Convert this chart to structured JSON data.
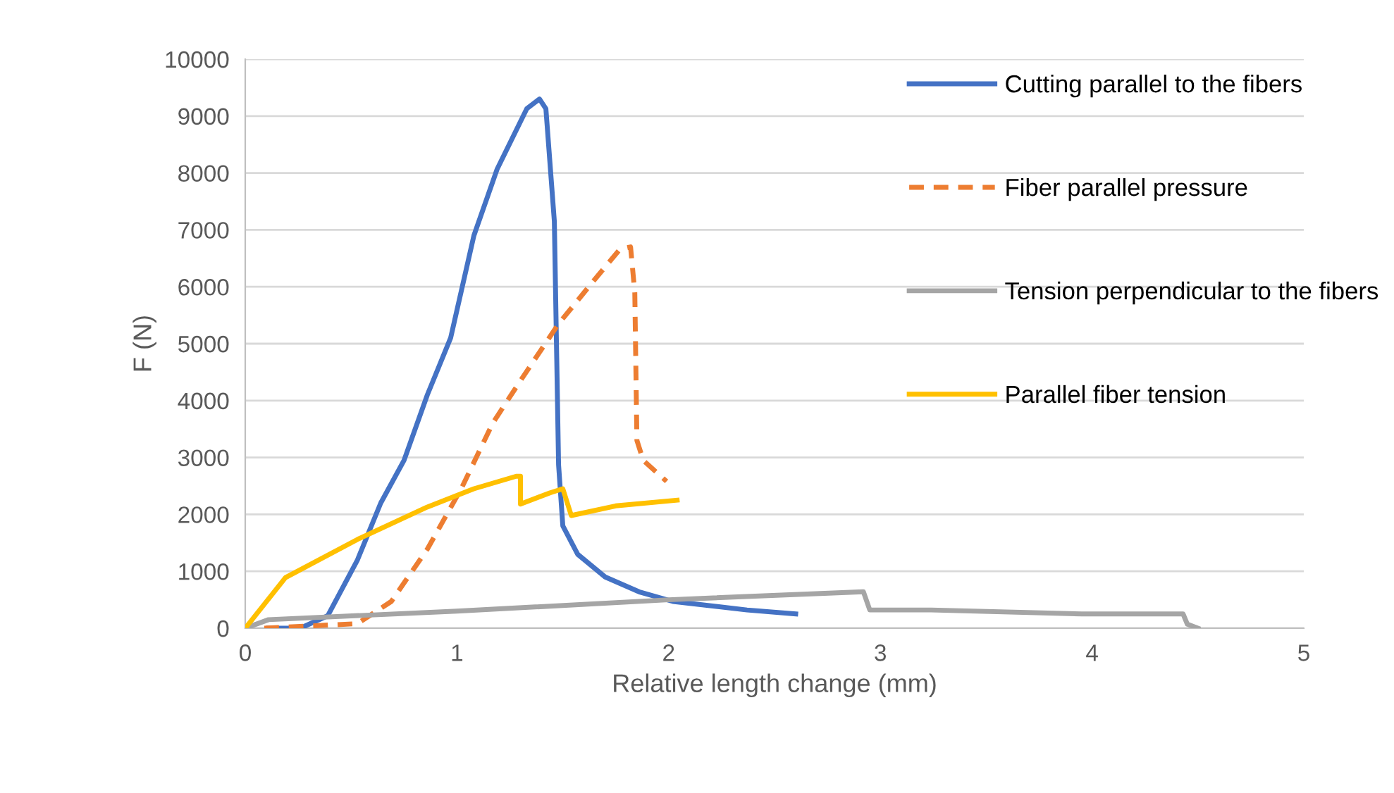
{
  "chart_data": {
    "type": "line",
    "xlabel": "Relative length change (mm)",
    "ylabel": "F (N)",
    "xlim": [
      0,
      5
    ],
    "xticks": [
      0,
      1,
      2,
      3,
      4,
      5
    ],
    "ylim": [
      0,
      10000
    ],
    "yticks": [
      0,
      1000,
      2000,
      3000,
      4000,
      5000,
      6000,
      7000,
      8000,
      9000,
      10000
    ],
    "grid": "y",
    "legend": "right",
    "marker": "none",
    "series": [
      {
        "name": "Cutting parallel to the fibers",
        "color": "#4472c4",
        "line_style": "solid",
        "x": [
          0.11,
          0.26,
          0.39,
          0.53,
          0.64,
          0.75,
          0.86,
          0.97,
          1.08,
          1.19,
          1.33,
          1.39,
          1.42,
          1.46,
          1.48,
          1.5,
          1.57,
          1.7,
          1.86,
          2.02,
          2.37,
          2.6
        ],
        "values": [
          0,
          0,
          220,
          1200,
          2200,
          2950,
          4100,
          5100,
          6900,
          8070,
          9130,
          9300,
          9130,
          7150,
          2870,
          1800,
          1300,
          900,
          640,
          470,
          320,
          250
        ]
      },
      {
        "name": "Fiber parallel pressure",
        "color": "#ed7d31",
        "line_style": "dashed",
        "x": [
          0.09,
          0.53,
          0.69,
          0.86,
          1.02,
          1.17,
          1.3,
          1.48,
          1.66,
          1.77,
          1.82,
          1.84,
          1.85,
          1.88,
          1.99
        ],
        "values": [
          0,
          80,
          470,
          1390,
          2450,
          3610,
          4350,
          5350,
          6170,
          6660,
          6700,
          5900,
          3300,
          2950,
          2580
        ]
      },
      {
        "name": "Tension perpendicular to the fibers",
        "color": "#a5a5a5",
        "line_style": "solid",
        "x": [
          0,
          0.11,
          1.0,
          2.0,
          2.92,
          2.95,
          3.24,
          3.95,
          4.43,
          4.45,
          4.5
        ],
        "values": [
          0,
          150,
          300,
          500,
          640,
          320,
          320,
          250,
          250,
          70,
          0
        ]
      },
      {
        "name": "Parallel fiber tension",
        "color": "#ffc000",
        "line_style": "solid",
        "x": [
          0,
          0.19,
          0.53,
          0.86,
          1.08,
          1.28,
          1.3,
          1.3,
          1.44,
          1.5,
          1.54,
          1.75,
          2.04
        ],
        "values": [
          0,
          890,
          1560,
          2130,
          2450,
          2670,
          2670,
          2180,
          2380,
          2450,
          1980,
          2150,
          2250
        ]
      }
    ]
  }
}
